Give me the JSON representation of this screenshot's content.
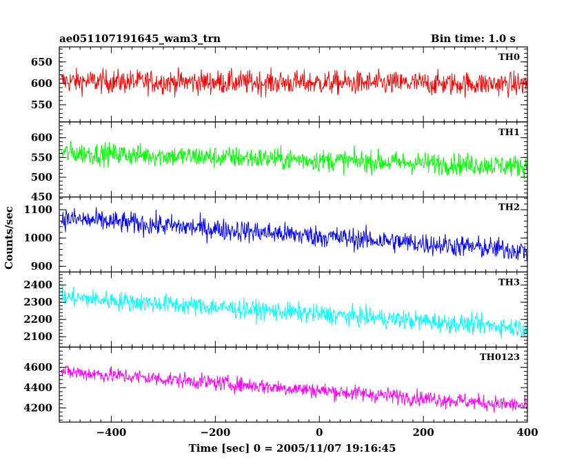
{
  "header": {
    "title": "ae051107191645_wam3_trn",
    "bin_time": "Bin time: 1.0 s"
  },
  "chart_data": {
    "type": "line",
    "title": "ae051107191645_wam3_trn",
    "subtitle": "Bin time: 1.0 s",
    "xlabel": "Time [sec] 0 = 2005/11/07 19:16:45",
    "ylabel": "Counts/sec",
    "xlim": [
      -500,
      400
    ],
    "x_ticks": [
      -400,
      -200,
      0,
      200,
      400
    ],
    "x_tick_labels": [
      "−400",
      "−200",
      "0",
      "200",
      "400"
    ],
    "bin_time_s": 1.0,
    "panels": [
      {
        "name": "TH0",
        "color": "#ff0000",
        "ylim": [
          510,
          685
        ],
        "y_ticks": [
          550,
          600,
          650
        ],
        "y_tick_labels": [
          "550",
          "600",
          "650"
        ],
        "trend": [
          [
            -500,
            605
          ],
          [
            400,
            598
          ]
        ],
        "noise_amplitude": 25
      },
      {
        "name": "TH1",
        "color": "#00ff00",
        "ylim": [
          450,
          640
        ],
        "y_ticks": [
          450,
          500,
          550,
          600
        ],
        "y_tick_labels": [
          "450",
          "500",
          "550",
          "600"
        ],
        "trend": [
          [
            -500,
            562
          ],
          [
            400,
            528
          ]
        ],
        "noise_amplitude": 25
      },
      {
        "name": "TH2",
        "color": "#0000ff",
        "ylim": [
          880,
          1145
        ],
        "y_ticks": [
          900,
          1000,
          1100
        ],
        "y_tick_labels": [
          "900",
          "1000",
          "1100"
        ],
        "trend": [
          [
            -500,
            1070
          ],
          [
            400,
            955
          ]
        ],
        "noise_amplitude": 35
      },
      {
        "name": "TH3",
        "color": "#00ffff",
        "ylim": [
          2040,
          2475
        ],
        "y_ticks": [
          2100,
          2200,
          2300,
          2400
        ],
        "y_tick_labels": [
          "2100",
          "2200",
          "2300",
          "2400"
        ],
        "trend": [
          [
            -500,
            2330
          ],
          [
            400,
            2150
          ]
        ],
        "noise_amplitude": 50
      },
      {
        "name": "TH0123",
        "color": "#ff00ff",
        "ylim": [
          4060,
          4800
        ],
        "y_ticks": [
          4200,
          4400,
          4600
        ],
        "y_tick_labels": [
          "4200",
          "4400",
          "4600"
        ],
        "trend": [
          [
            -500,
            4560
          ],
          [
            400,
            4220
          ]
        ],
        "noise_amplitude": 70
      }
    ]
  }
}
